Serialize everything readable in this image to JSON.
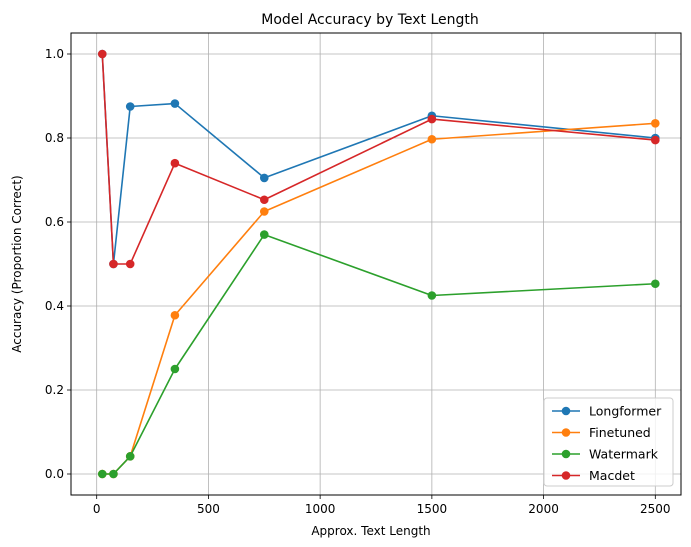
{
  "chart_data": {
    "type": "line",
    "title": "Model Accuracy by Text Length",
    "xlabel": "Approx. Text Length",
    "ylabel": "Accuracy (Proportion Correct)",
    "xlim": [
      -115,
      2615
    ],
    "ylim": [
      -0.05,
      1.05
    ],
    "xticks": [
      0,
      500,
      1000,
      1500,
      2000,
      2500
    ],
    "yticks": [
      0.0,
      0.2,
      0.4,
      0.6,
      0.8,
      1.0
    ],
    "xtick_labels": [
      "0",
      "500",
      "1000",
      "1500",
      "2000",
      "2500"
    ],
    "ytick_labels": [
      "0.0",
      "0.2",
      "0.4",
      "0.6",
      "0.8",
      "1.0"
    ],
    "grid": true,
    "legend_position": "lower-right",
    "x": [
      25,
      75,
      150,
      350,
      750,
      1500,
      2500
    ],
    "series": [
      {
        "name": "Longformer",
        "color": "#1f77b4",
        "values": [
          1.0,
          0.5,
          0.875,
          0.882,
          0.705,
          0.853,
          0.8
        ]
      },
      {
        "name": "Finetuned",
        "color": "#ff7f0e",
        "values": [
          0.0,
          0.0,
          0.042,
          0.378,
          0.625,
          0.797,
          0.835
        ]
      },
      {
        "name": "Watermark",
        "color": "#2ca02c",
        "values": [
          0.0,
          0.0,
          0.042,
          0.25,
          0.57,
          0.425,
          0.453
        ]
      },
      {
        "name": "Macdet",
        "color": "#d62728",
        "values": [
          1.0,
          0.5,
          0.5,
          0.74,
          0.653,
          0.845,
          0.795
        ]
      }
    ]
  }
}
